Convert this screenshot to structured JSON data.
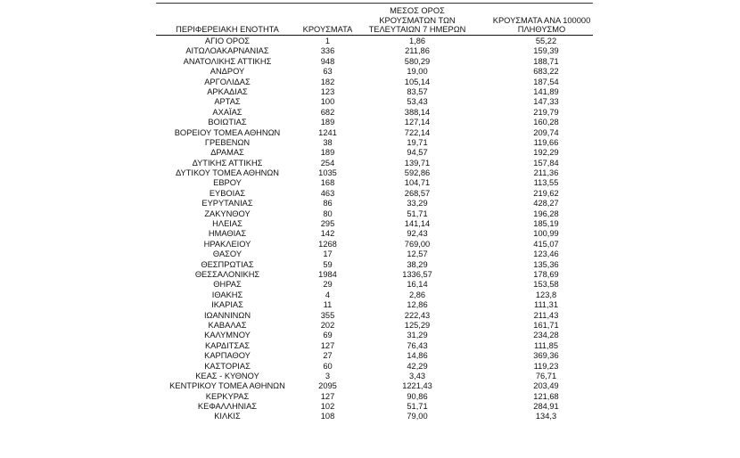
{
  "headers": {
    "region": "ΠΕΡΙΦΕΡΕΙΑΚΗ ΕΝΟΤΗΤΑ",
    "cases": "ΚΡΟΥΣΜΑΤΑ",
    "avg7_line1": "ΜΕΣΟΣ ΟΡΟΣ",
    "avg7_line2": "ΚΡΟΥΣΜΑΤΩΝ ΤΩΝ",
    "avg7_line3": "ΤΕΛΕΥΤΑΙΩΝ 7 ΗΜΕΡΩΝ",
    "per100k_line1": "ΚΡΟΥΣΜΑΤΑ ΑΝΑ 100000",
    "per100k_line2": "ΠΛΗΘΥΣΜΟ"
  },
  "rows": [
    {
      "region": "ΑΓΙΟ ΟΡΟΣ",
      "cases": "1",
      "avg7": "1,86",
      "per100k": "55,22"
    },
    {
      "region": "ΑΙΤΩΛΟΑΚΑΡΝΑΝΙΑΣ",
      "cases": "336",
      "avg7": "211,86",
      "per100k": "159,39"
    },
    {
      "region": "ΑΝΑΤΟΛΙΚΗΣ ΑΤΤΙΚΗΣ",
      "cases": "948",
      "avg7": "580,29",
      "per100k": "188,71"
    },
    {
      "region": "ΑΝΔΡΟΥ",
      "cases": "63",
      "avg7": "19,00",
      "per100k": "683,22"
    },
    {
      "region": "ΑΡΓΟΛΙΔΑΣ",
      "cases": "182",
      "avg7": "105,14",
      "per100k": "187,54"
    },
    {
      "region": "ΑΡΚΑΔΙΑΣ",
      "cases": "123",
      "avg7": "83,57",
      "per100k": "141,89"
    },
    {
      "region": "ΑΡΤΑΣ",
      "cases": "100",
      "avg7": "53,43",
      "per100k": "147,33"
    },
    {
      "region": "ΑΧΑΪΑΣ",
      "cases": "682",
      "avg7": "388,14",
      "per100k": "219,79"
    },
    {
      "region": "ΒΟΙΩΤΙΑΣ",
      "cases": "189",
      "avg7": "127,14",
      "per100k": "160,28"
    },
    {
      "region": "ΒΟΡΕΙΟΥ ΤΟΜΕΑ ΑΘΗΝΩΝ",
      "cases": "1241",
      "avg7": "722,14",
      "per100k": "209,74"
    },
    {
      "region": "ΓΡΕΒΕΝΩΝ",
      "cases": "38",
      "avg7": "19,71",
      "per100k": "119,66"
    },
    {
      "region": "ΔΡΑΜΑΣ",
      "cases": "189",
      "avg7": "94,57",
      "per100k": "192,29"
    },
    {
      "region": "ΔΥΤΙΚΗΣ ΑΤΤΙΚΗΣ",
      "cases": "254",
      "avg7": "139,71",
      "per100k": "157,84"
    },
    {
      "region": "ΔΥΤΙΚΟΥ ΤΟΜΕΑ ΑΘΗΝΩΝ",
      "cases": "1035",
      "avg7": "592,86",
      "per100k": "211,36"
    },
    {
      "region": "ΕΒΡΟΥ",
      "cases": "168",
      "avg7": "104,71",
      "per100k": "113,55"
    },
    {
      "region": "ΕΥΒΟΙΑΣ",
      "cases": "463",
      "avg7": "268,57",
      "per100k": "219,62"
    },
    {
      "region": "ΕΥΡΥΤΑΝΙΑΣ",
      "cases": "86",
      "avg7": "33,29",
      "per100k": "428,27"
    },
    {
      "region": "ΖΑΚΥΝΘΟΥ",
      "cases": "80",
      "avg7": "51,71",
      "per100k": "196,28"
    },
    {
      "region": "ΗΛΕΙΑΣ",
      "cases": "295",
      "avg7": "141,14",
      "per100k": "185,19"
    },
    {
      "region": "ΗΜΑΘΙΑΣ",
      "cases": "142",
      "avg7": "92,43",
      "per100k": "100,99"
    },
    {
      "region": "ΗΡΑΚΛΕΙΟΥ",
      "cases": "1268",
      "avg7": "769,00",
      "per100k": "415,07"
    },
    {
      "region": "ΘΑΣΟΥ",
      "cases": "17",
      "avg7": "12,57",
      "per100k": "123,46"
    },
    {
      "region": "ΘΕΣΠΡΩΤΙΑΣ",
      "cases": "59",
      "avg7": "38,29",
      "per100k": "135,36"
    },
    {
      "region": "ΘΕΣΣΑΛΟΝΙΚΗΣ",
      "cases": "1984",
      "avg7": "1336,57",
      "per100k": "178,69"
    },
    {
      "region": "ΘΗΡΑΣ",
      "cases": "29",
      "avg7": "16,14",
      "per100k": "153,58"
    },
    {
      "region": "ΙΘΑΚΗΣ",
      "cases": "4",
      "avg7": "2,86",
      "per100k": "123,8"
    },
    {
      "region": "ΙΚΑΡΙΑΣ",
      "cases": "11",
      "avg7": "12,86",
      "per100k": "111,31"
    },
    {
      "region": "ΙΩΑΝΝΙΝΩΝ",
      "cases": "355",
      "avg7": "222,43",
      "per100k": "211,43"
    },
    {
      "region": "ΚΑΒΑΛΑΣ",
      "cases": "202",
      "avg7": "125,29",
      "per100k": "161,71"
    },
    {
      "region": "ΚΑΛΥΜΝΟΥ",
      "cases": "69",
      "avg7": "31,29",
      "per100k": "234,28"
    },
    {
      "region": "ΚΑΡΔΙΤΣΑΣ",
      "cases": "127",
      "avg7": "76,43",
      "per100k": "111,85"
    },
    {
      "region": "ΚΑΡΠΑΘΟΥ",
      "cases": "27",
      "avg7": "14,86",
      "per100k": "369,36"
    },
    {
      "region": "ΚΑΣΤΟΡΙΑΣ",
      "cases": "60",
      "avg7": "42,29",
      "per100k": "119,23"
    },
    {
      "region": "ΚΕΑΣ - ΚΥΘΝΟΥ",
      "cases": "3",
      "avg7": "3,43",
      "per100k": "76,71"
    },
    {
      "region": "ΚΕΝΤΡΙΚΟΥ ΤΟΜΕΑ ΑΘΗΝΩΝ",
      "cases": "2095",
      "avg7": "1221,43",
      "per100k": "203,49"
    },
    {
      "region": "ΚΕΡΚΥΡΑΣ",
      "cases": "127",
      "avg7": "90,86",
      "per100k": "121,68"
    },
    {
      "region": "ΚΕΦΑΛΛΗΝΙΑΣ",
      "cases": "102",
      "avg7": "51,71",
      "per100k": "284,91"
    },
    {
      "region": "ΚΙΛΚΙΣ",
      "cases": "108",
      "avg7": "79,00",
      "per100k": "134,3"
    }
  ]
}
